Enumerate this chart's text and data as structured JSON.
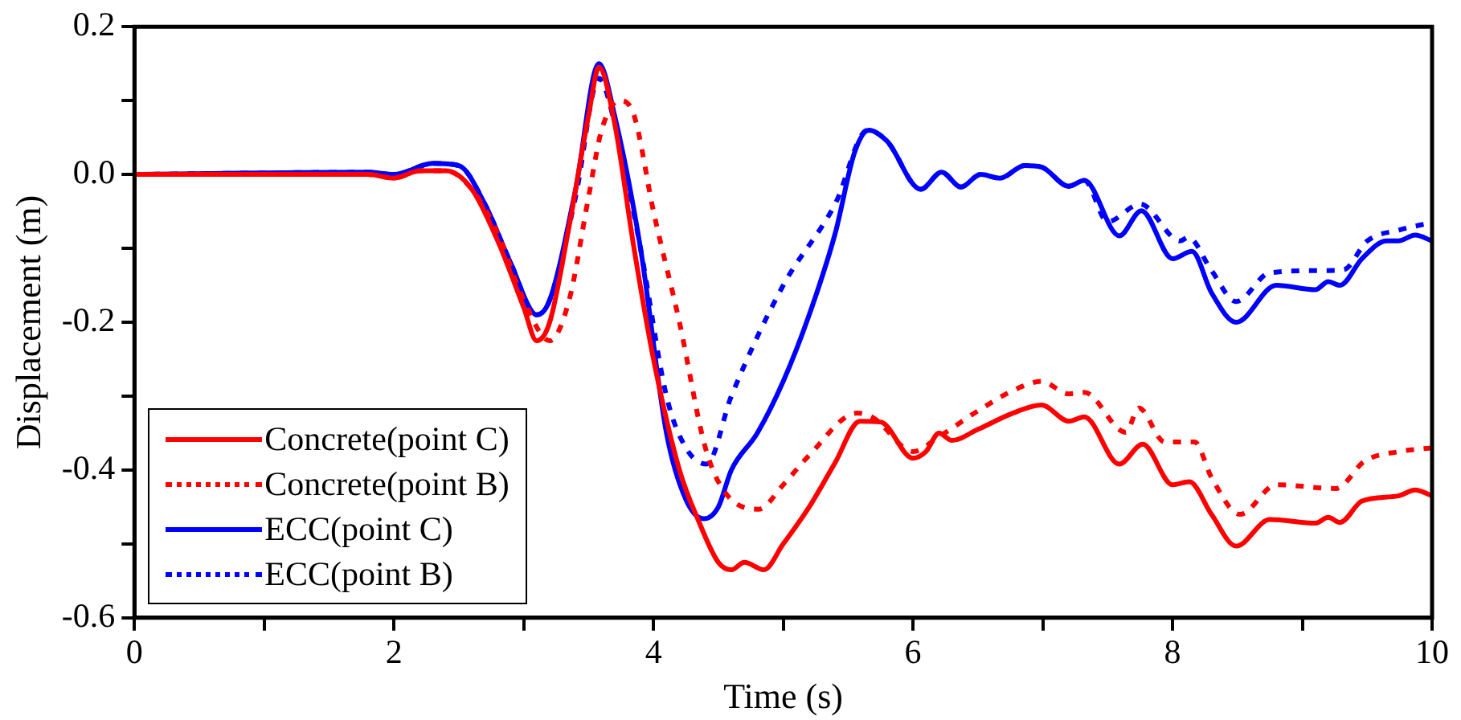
{
  "chart_data": {
    "type": "line",
    "xlabel": "Time (s)",
    "ylabel": "Displacement (m)",
    "xlim": [
      0,
      10
    ],
    "xticks": [
      0,
      {
        "value": 1,
        "label": null
      },
      2,
      {
        "value": 3,
        "label": null
      },
      4,
      {
        "value": 5,
        "label": null
      },
      6,
      {
        "value": 7,
        "label": null
      },
      8,
      {
        "value": 9,
        "label": null
      },
      10
    ],
    "ylim": [
      -0.6,
      0.2
    ],
    "yticks": [
      -0.6,
      {
        "value": -0.5,
        "label": null
      },
      -0.4,
      {
        "value": -0.3,
        "label": null
      },
      -0.2,
      {
        "value": -0.1,
        "label": null
      },
      {
        "value": 0,
        "label": "0.0"
      },
      {
        "value": 0.1,
        "label": null
      },
      0.2
    ],
    "grid": false,
    "legend": "bottom left",
    "marker": "none",
    "series": [
      {
        "name": "Concrete(point C)",
        "color": "#ff0000",
        "line_style": "solid",
        "x": [
          0,
          1.8,
          2.0,
          2.2,
          2.4,
          2.6,
          2.8,
          3.0,
          3.1,
          3.2,
          3.35,
          3.5,
          3.58,
          3.7,
          3.85,
          4.0,
          4.2,
          4.35,
          4.5,
          4.6,
          4.7,
          4.85,
          5.0,
          5.2,
          5.4,
          5.59,
          5.75,
          6.0,
          6.1,
          6.2,
          6.3,
          6.5,
          6.77,
          6.99,
          7.2,
          7.32,
          7.59,
          7.77,
          8.0,
          8.13,
          8.3,
          8.49,
          8.75,
          9.1,
          9.2,
          9.29,
          9.46,
          9.74,
          9.87,
          10
        ],
        "values": [
          0,
          0,
          -0.005,
          0.005,
          0.005,
          -0.02,
          -0.09,
          -0.18,
          -0.225,
          -0.2,
          -0.07,
          0.08,
          0.145,
          0.07,
          -0.1,
          -0.25,
          -0.4,
          -0.47,
          -0.525,
          -0.535,
          -0.525,
          -0.535,
          -0.5,
          -0.45,
          -0.39,
          -0.334,
          -0.335,
          -0.384,
          -0.375,
          -0.35,
          -0.36,
          -0.345,
          -0.323,
          -0.312,
          -0.334,
          -0.328,
          -0.392,
          -0.365,
          -0.42,
          -0.416,
          -0.46,
          -0.503,
          -0.467,
          -0.472,
          -0.464,
          -0.471,
          -0.442,
          -0.435,
          -0.427,
          -0.435
        ]
      },
      {
        "name": "Concrete(point B)",
        "color": "#ff0000",
        "line_style": "dotted",
        "x": [
          0,
          1.8,
          2.0,
          2.2,
          2.4,
          2.6,
          2.8,
          3.0,
          3.2,
          3.35,
          3.5,
          3.6,
          3.74,
          3.85,
          4.0,
          4.2,
          4.4,
          4.55,
          4.81,
          5.0,
          5.2,
          5.57,
          5.7,
          6.0,
          6.2,
          6.5,
          6.8,
          6.99,
          7.2,
          7.32,
          7.64,
          7.74,
          7.94,
          8.17,
          8.3,
          8.52,
          8.8,
          9.26,
          9.48,
          9.75,
          10
        ],
        "values": [
          0,
          0,
          -0.005,
          0.005,
          0.005,
          -0.02,
          -0.08,
          -0.17,
          -0.225,
          -0.17,
          -0.03,
          0.06,
          0.1,
          0.08,
          -0.05,
          -0.2,
          -0.37,
          -0.43,
          -0.453,
          -0.42,
          -0.38,
          -0.323,
          -0.33,
          -0.375,
          -0.355,
          -0.32,
          -0.29,
          -0.28,
          -0.297,
          -0.295,
          -0.349,
          -0.316,
          -0.362,
          -0.362,
          -0.41,
          -0.46,
          -0.42,
          -0.425,
          -0.388,
          -0.375,
          -0.37
        ]
      },
      {
        "name": "ECC(point C)",
        "color": "#0000ff",
        "line_style": "solid",
        "x": [
          0,
          1.8,
          2.0,
          2.3,
          2.5,
          2.7,
          2.9,
          3.1,
          3.2,
          3.4,
          3.58,
          3.7,
          3.9,
          4.1,
          4.25,
          4.39,
          4.5,
          4.6,
          4.8,
          5.0,
          5.2,
          5.4,
          5.55,
          5.66,
          5.8,
          6.06,
          6.22,
          6.37,
          6.52,
          6.67,
          6.86,
          6.99,
          7.2,
          7.32,
          7.59,
          7.76,
          8.0,
          8.15,
          8.3,
          8.49,
          8.8,
          9.1,
          9.2,
          9.29,
          9.46,
          9.65,
          9.74,
          9.87,
          10
        ],
        "values": [
          0,
          0.003,
          0,
          0.015,
          0.012,
          -0.04,
          -0.12,
          -0.19,
          -0.17,
          -0.02,
          0.15,
          0.08,
          -0.1,
          -0.35,
          -0.44,
          -0.466,
          -0.45,
          -0.4,
          -0.35,
          -0.28,
          -0.19,
          -0.08,
          0.03,
          0.06,
          0.045,
          -0.02,
          0.003,
          -0.017,
          0,
          -0.005,
          0.012,
          0.01,
          -0.016,
          -0.008,
          -0.083,
          -0.049,
          -0.114,
          -0.104,
          -0.16,
          -0.2,
          -0.15,
          -0.156,
          -0.145,
          -0.15,
          -0.114,
          -0.09,
          -0.09,
          -0.082,
          -0.09
        ]
      },
      {
        "name": "ECC(point B)",
        "color": "#0000ff",
        "line_style": "dotted",
        "x": [
          0,
          1.8,
          2.0,
          2.3,
          2.5,
          2.7,
          2.9,
          3.1,
          3.2,
          3.4,
          3.58,
          3.7,
          3.9,
          4.1,
          4.25,
          4.41,
          4.6,
          5.0,
          5.4,
          5.65,
          5.8,
          6.06,
          6.22,
          6.37,
          6.52,
          6.67,
          6.86,
          6.99,
          7.2,
          7.32,
          7.5,
          7.75,
          8.06,
          8.12,
          8.3,
          8.49,
          8.75,
          9.2,
          9.32,
          9.5,
          9.75,
          10
        ],
        "values": [
          0,
          0.003,
          0,
          0.015,
          0.012,
          -0.04,
          -0.12,
          -0.19,
          -0.17,
          -0.03,
          0.13,
          0.07,
          -0.1,
          -0.3,
          -0.37,
          -0.392,
          -0.3,
          -0.15,
          -0.04,
          0.06,
          0.045,
          -0.02,
          0.003,
          -0.017,
          0,
          -0.005,
          0.012,
          0.01,
          -0.016,
          -0.008,
          -0.064,
          -0.04,
          -0.09,
          -0.085,
          -0.13,
          -0.172,
          -0.133,
          -0.13,
          -0.129,
          -0.09,
          -0.075,
          -0.065
        ]
      }
    ]
  }
}
